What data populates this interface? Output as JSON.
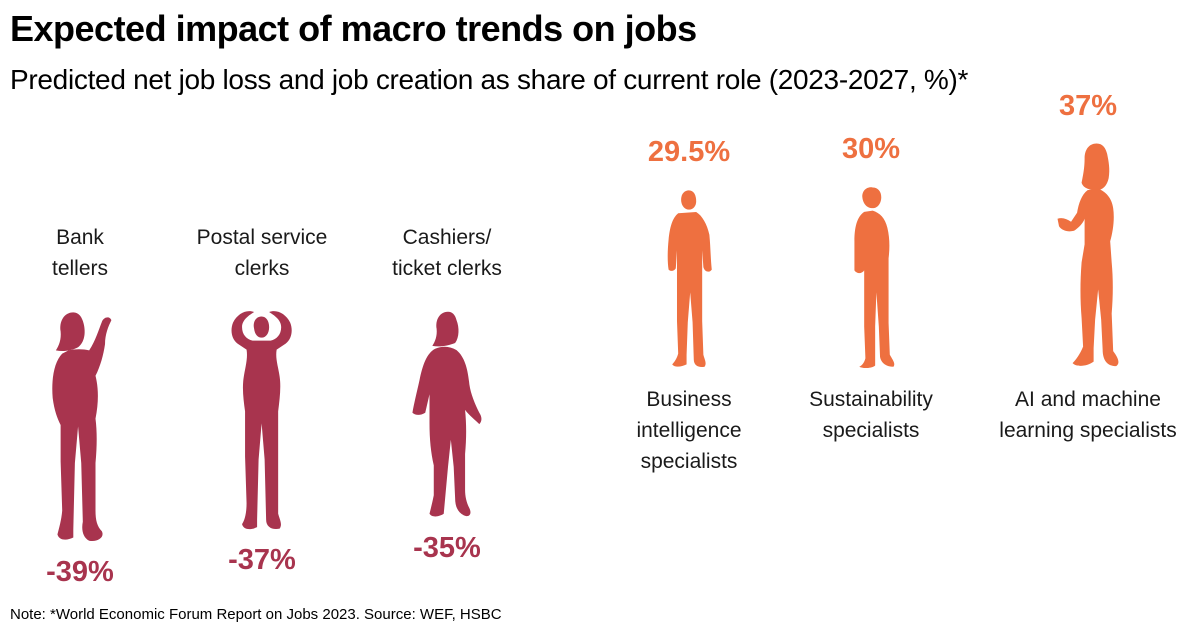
{
  "title": "Expected impact of macro trends on jobs",
  "subtitle": "Predicted net job loss and job creation as share of current role (2023-2027, %)*",
  "note": "Note: *World Economic Forum Report on Jobs 2023. Source: WEF, HSBC",
  "colors": {
    "loss": "#A8344E",
    "gain": "#EE7040"
  },
  "chart_data": {
    "type": "pictogram",
    "categories": [
      "Bank tellers",
      "Postal service clerks",
      "Cashiers/ ticket clerks",
      "Business intelligence specialists",
      "Sustainability specialists",
      "AI and machine learning specialists"
    ],
    "items": [
      {
        "label_lines": [
          "Bank",
          "tellers"
        ],
        "value": -39,
        "value_label": "-39%",
        "group": "loss",
        "icon": "person-waving-icon"
      },
      {
        "label_lines": [
          "Postal service",
          "clerks"
        ],
        "value": -37,
        "value_label": "-37%",
        "group": "loss",
        "icon": "person-hands-on-head-icon"
      },
      {
        "label_lines": [
          "Cashiers/",
          "ticket clerks"
        ],
        "value": -35,
        "value_label": "-35%",
        "group": "loss",
        "icon": "person-walking-away-icon"
      },
      {
        "label_lines": [
          "Business",
          "intelligence",
          "specialists"
        ],
        "value": 29.5,
        "value_label": "29.5%",
        "group": "gain",
        "icon": "person-standing-icon"
      },
      {
        "label_lines": [
          "Sustainability",
          "specialists"
        ],
        "value": 30,
        "value_label": "30%",
        "group": "gain",
        "icon": "person-side-standing-icon"
      },
      {
        "label_lines": [
          "AI and machine",
          "learning specialists"
        ],
        "value": 37,
        "value_label": "37%",
        "group": "gain",
        "icon": "person-with-phone-icon"
      }
    ]
  }
}
